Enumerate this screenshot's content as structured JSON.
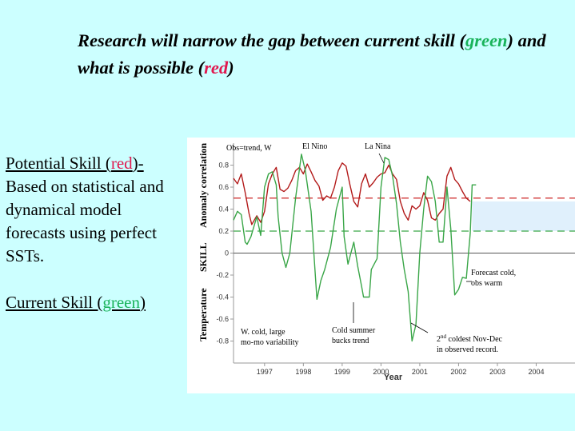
{
  "slide": {
    "title_part1": "Research will narrow the gap between current skill (",
    "title_green": "green",
    "title_part2": ") and what is possible (",
    "title_red": "red",
    "title_part3": ")",
    "potential_label_a": "Potential Skill (",
    "potential_label_red": "red",
    "potential_label_b": ")-",
    "potential_desc": "Based on statistical and dynamical model forecasts using perfect SSTs.",
    "current_label_a": "Current Skill (",
    "current_label_green": "green",
    "current_label_b": ")"
  },
  "chart_data": {
    "type": "line",
    "xlabel": "Year",
    "ylabel_parts": [
      "Temperature",
      "SKILL",
      "Anomaly correlation"
    ],
    "xlim": [
      1996.2,
      2005.0
    ],
    "ylim": [
      -1.0,
      1.0
    ],
    "x_ticks": [
      1997,
      1998,
      1999,
      2000,
      2001,
      2002,
      2003,
      2004
    ],
    "x_tick_labels": [
      "1997",
      "1998",
      "1999",
      "2000",
      "2001",
      "2002",
      "2003",
      "2004"
    ],
    "y_ticks": [
      -0.8,
      -0.6,
      -0.4,
      -0.2,
      0,
      0.2,
      0.4,
      0.6,
      0.8
    ],
    "y_tick_labels": [
      "-0.8",
      "-0.6",
      "-0.4",
      "-0.2",
      "0",
      "0.2",
      "0.4",
      "0.6",
      "0.8"
    ],
    "colors": {
      "red": "#b31b1b",
      "green": "#3aa648",
      "red_dashed": "#cc2222",
      "green_dashed": "#3aa648",
      "shade": "#e0f0fc"
    },
    "reference_lines": [
      {
        "y": 0.5,
        "style": "dashed",
        "color": "red_dashed"
      },
      {
        "y": 0.2,
        "style": "dashed",
        "color": "green_dashed"
      },
      {
        "y": 0.0,
        "style": "solid",
        "color": "gray"
      }
    ],
    "shaded_band": {
      "x_from": 2002.35,
      "x_to": 2005.0,
      "y_from": 0.2,
      "y_to": 0.47
    },
    "series": [
      {
        "color": "red",
        "points": [
          [
            1996.2,
            0.68
          ],
          [
            1996.3,
            0.63
          ],
          [
            1996.4,
            0.72
          ],
          [
            1996.5,
            0.55
          ],
          [
            1996.6,
            0.36
          ],
          [
            1996.67,
            0.26
          ],
          [
            1996.8,
            0.34
          ],
          [
            1996.9,
            0.28
          ],
          [
            1997.0,
            0.38
          ],
          [
            1997.1,
            0.63
          ],
          [
            1997.2,
            0.72
          ],
          [
            1997.3,
            0.78
          ],
          [
            1997.4,
            0.58
          ],
          [
            1997.5,
            0.56
          ],
          [
            1997.6,
            0.59
          ],
          [
            1997.7,
            0.66
          ],
          [
            1997.8,
            0.75
          ],
          [
            1997.9,
            0.78
          ],
          [
            1998.0,
            0.72
          ],
          [
            1998.1,
            0.81
          ],
          [
            1998.2,
            0.74
          ],
          [
            1998.3,
            0.66
          ],
          [
            1998.4,
            0.61
          ],
          [
            1998.5,
            0.48
          ],
          [
            1998.6,
            0.52
          ],
          [
            1998.7,
            0.5
          ],
          [
            1998.8,
            0.6
          ],
          [
            1998.9,
            0.75
          ],
          [
            1999.0,
            0.82
          ],
          [
            1999.1,
            0.79
          ],
          [
            1999.2,
            0.62
          ],
          [
            1999.3,
            0.47
          ],
          [
            1999.4,
            0.42
          ],
          [
            1999.5,
            0.63
          ],
          [
            1999.6,
            0.72
          ],
          [
            1999.7,
            0.6
          ],
          [
            1999.8,
            0.64
          ],
          [
            1999.9,
            0.69
          ],
          [
            2000.0,
            0.72
          ],
          [
            2000.1,
            0.73
          ],
          [
            2000.2,
            0.8
          ],
          [
            2000.3,
            0.72
          ],
          [
            2000.4,
            0.67
          ],
          [
            2000.5,
            0.47
          ],
          [
            2000.6,
            0.36
          ],
          [
            2000.7,
            0.3
          ],
          [
            2000.8,
            0.43
          ],
          [
            2000.9,
            0.4
          ],
          [
            2001.0,
            0.43
          ],
          [
            2001.1,
            0.55
          ],
          [
            2001.2,
            0.48
          ],
          [
            2001.3,
            0.32
          ],
          [
            2001.4,
            0.3
          ],
          [
            2001.5,
            0.36
          ],
          [
            2001.6,
            0.4
          ],
          [
            2001.7,
            0.7
          ],
          [
            2001.8,
            0.78
          ],
          [
            2001.9,
            0.67
          ],
          [
            2002.0,
            0.63
          ],
          [
            2002.1,
            0.56
          ],
          [
            2002.2,
            0.5
          ],
          [
            2002.3,
            0.47
          ]
        ]
      },
      {
        "color": "green",
        "points": [
          [
            1996.2,
            0.3
          ],
          [
            1996.3,
            0.38
          ],
          [
            1996.4,
            0.35
          ],
          [
            1996.5,
            0.1
          ],
          [
            1996.55,
            0.08
          ],
          [
            1996.65,
            0.15
          ],
          [
            1996.8,
            0.33
          ],
          [
            1996.9,
            0.16
          ],
          [
            1997.0,
            0.6
          ],
          [
            1997.1,
            0.72
          ],
          [
            1997.2,
            0.74
          ],
          [
            1997.3,
            0.62
          ],
          [
            1997.35,
            0.33
          ],
          [
            1997.45,
            0.0
          ],
          [
            1997.55,
            -0.13
          ],
          [
            1997.65,
            0.0
          ],
          [
            1997.8,
            0.5
          ],
          [
            1997.95,
            0.9
          ],
          [
            1998.05,
            0.75
          ],
          [
            1998.2,
            0.38
          ],
          [
            1998.35,
            -0.42
          ],
          [
            1998.45,
            -0.25
          ],
          [
            1998.55,
            -0.15
          ],
          [
            1998.7,
            0.05
          ],
          [
            1998.85,
            0.4
          ],
          [
            1999.0,
            0.6
          ],
          [
            1999.05,
            0.15
          ],
          [
            1999.15,
            -0.1
          ],
          [
            1999.3,
            0.1
          ],
          [
            1999.4,
            -0.12
          ],
          [
            1999.5,
            -0.3
          ],
          [
            1999.55,
            -0.4
          ],
          [
            1999.7,
            -0.4
          ],
          [
            1999.75,
            -0.15
          ],
          [
            1999.9,
            -0.05
          ],
          [
            2000.0,
            0.6
          ],
          [
            2000.1,
            0.87
          ],
          [
            2000.2,
            0.85
          ],
          [
            2000.3,
            0.7
          ],
          [
            2000.4,
            0.45
          ],
          [
            2000.5,
            0.1
          ],
          [
            2000.6,
            -0.15
          ],
          [
            2000.7,
            -0.35
          ],
          [
            2000.8,
            -0.8
          ],
          [
            2000.9,
            -0.65
          ],
          [
            2001.0,
            0.0
          ],
          [
            2001.1,
            0.4
          ],
          [
            2001.2,
            0.7
          ],
          [
            2001.3,
            0.65
          ],
          [
            2001.4,
            0.47
          ],
          [
            2001.5,
            0.1
          ],
          [
            2001.6,
            0.1
          ],
          [
            2001.7,
            0.6
          ],
          [
            2001.8,
            0.22
          ],
          [
            2001.9,
            -0.38
          ],
          [
            2002.0,
            -0.33
          ],
          [
            2002.1,
            -0.22
          ],
          [
            2002.2,
            -0.23
          ],
          [
            2002.3,
            0.18
          ],
          [
            2002.35,
            0.62
          ],
          [
            2002.45,
            0.62
          ]
        ]
      }
    ],
    "annotations": [
      {
        "text": "Obs=trend, W"
      },
      {
        "text": "El Nino"
      },
      {
        "text": "La Nina"
      },
      {
        "text": "Forecast cold,"
      },
      {
        "text": "obs warm"
      },
      {
        "text": "W. cold, large"
      },
      {
        "text": "mo-mo variability"
      },
      {
        "text": "Cold summer"
      },
      {
        "text": "bucks trend"
      },
      {
        "text": "2"
      },
      {
        "text": "nd"
      },
      {
        "text": " coldest Nov-Dec"
      },
      {
        "text": "in observed record."
      }
    ]
  }
}
